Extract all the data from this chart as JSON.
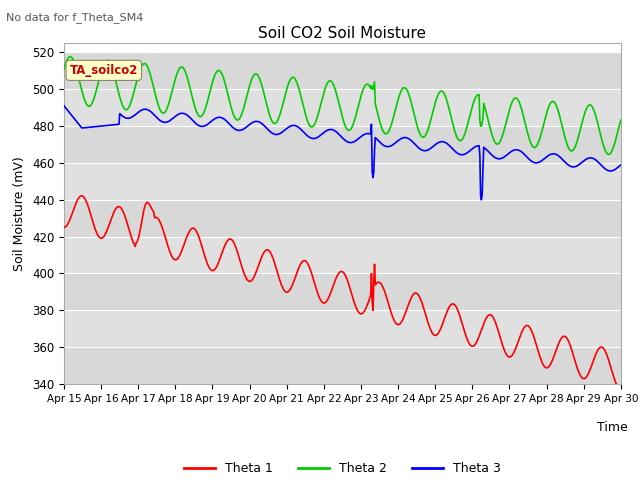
{
  "title": "Soil CO2 Soil Moisture",
  "subtitle": "No data for f_Theta_SM4",
  "ylabel": "Soil Moisture (mV)",
  "xlabel": "Time",
  "ylim": [
    340,
    525
  ],
  "yticks": [
    340,
    360,
    380,
    400,
    420,
    440,
    460,
    480,
    500,
    520
  ],
  "annotation_box": "TA_soilco2",
  "annotation_box_color": "#cc0000",
  "annotation_box_bg": "#ffffcc",
  "band_colors": [
    "#d8d8d8",
    "#e0e0e0"
  ],
  "grid_line_color": "#ffffff",
  "xtick_labels": [
    "Apr 15",
    "Apr 16",
    "Apr 17",
    "Apr 18",
    "Apr 19",
    "Apr 20",
    "Apr 21",
    "Apr 22",
    "Apr 23",
    "Apr 24",
    "Apr 25",
    "Apr 26",
    "Apr 27",
    "Apr 28",
    "Apr 29",
    "Apr 30"
  ],
  "legend_entries": [
    "Theta 1",
    "Theta 2",
    "Theta 3"
  ],
  "line_colors": [
    "#ff0000",
    "#00cc00",
    "#0000ff"
  ],
  "line_width": 1.2
}
